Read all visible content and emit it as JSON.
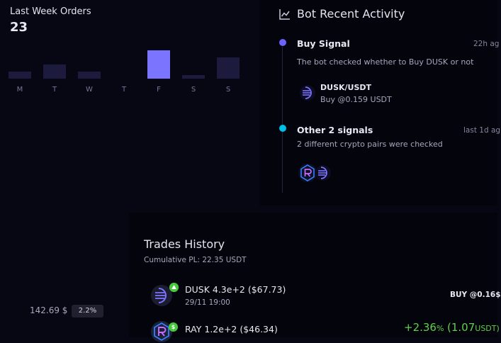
{
  "orders": {
    "title": "Last Week Orders",
    "count": "23",
    "days": [
      "M",
      "T",
      "W",
      "T",
      "F",
      "S",
      "S"
    ],
    "bar_levels": [
      0.25,
      0.5,
      0.25,
      0,
      1,
      0.125,
      0.75
    ],
    "active_day_index": 4
  },
  "activity": {
    "title": "Bot Recent Activity",
    "icon": "chart-line-icon",
    "signals": [
      {
        "title": "Buy Signal",
        "time": "22h ag",
        "dot_color": "#6c63ff",
        "desc": "The bot checked whether to Buy DUSK or not",
        "pair": "DUSK/USDT",
        "pair_sub": "Buy @0.159 USDT"
      },
      {
        "title": "Other 2 signals",
        "time": "last 1d ag",
        "dot_color": "#00bfe6",
        "desc": "2 different crypto pairs were checked"
      }
    ]
  },
  "left_bottom": {
    "value": "142.69 $",
    "badge": "2.2%"
  },
  "trades": {
    "title": "Trades History",
    "subtitle": "Cumulative PL: 22.35 USDT",
    "rows": [
      {
        "name": "DUSK 4.3e+2 ($67.73)",
        "date": "29/11 19:00",
        "side": "BUY @0.16$"
      },
      {
        "name": "RAY 1.2e+2 ($46.34)",
        "badge": "$",
        "pl_pct": "+2.36",
        "pl_pct_unit": "%",
        "pl_abs": "(1.07",
        "pl_unit": "USDT)"
      }
    ]
  },
  "colors": {
    "accent": "#7b74ff",
    "bar": "#1c1b3e",
    "green": "#5fd14a",
    "cyan": "#00bfe6"
  }
}
